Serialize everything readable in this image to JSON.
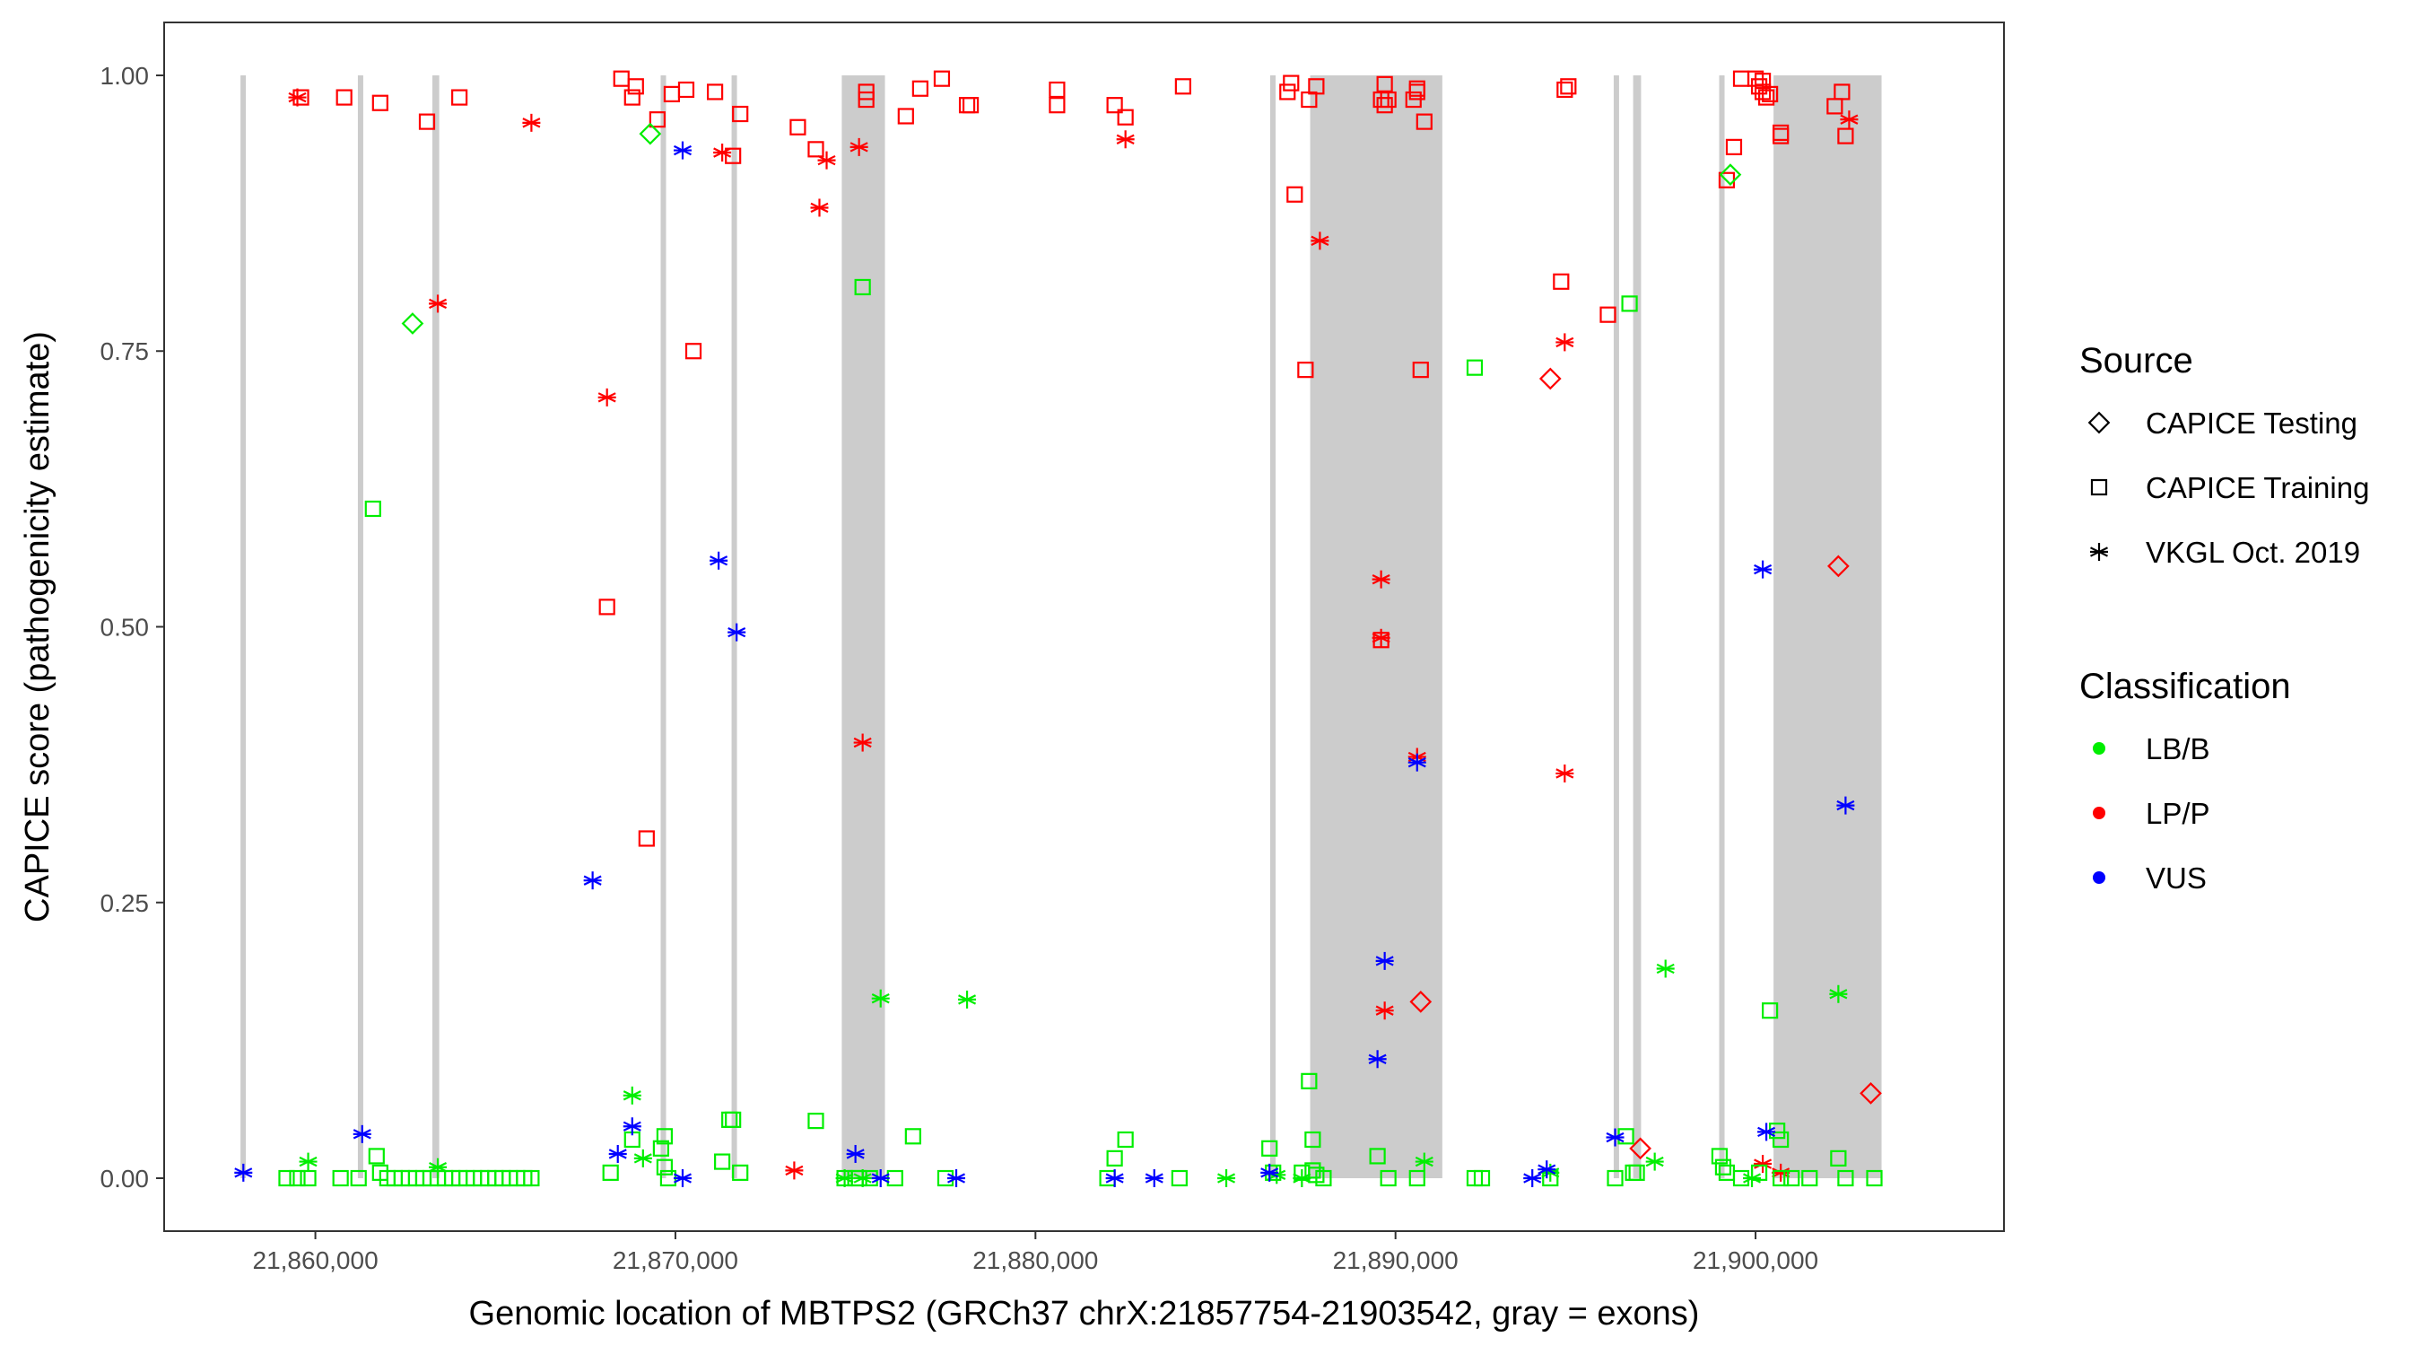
{
  "chart_data": {
    "type": "scatter",
    "title": "",
    "xlabel": "Genomic location of MBTPS2 (GRCh37 chrX:21857754-21903542, gray = exons)",
    "ylabel": "CAPICE score (pathogenicity estimate)",
    "xlim": [
      21855800,
      21906900
    ],
    "ylim": [
      -0.048,
      1.048
    ],
    "x_ticks": [
      21860000,
      21870000,
      21880000,
      21890000,
      21900000
    ],
    "x_tick_labels": [
      "21,860,000",
      "21,870,000",
      "21,880,000",
      "21,890,000",
      "21,900,000"
    ],
    "y_ticks": [
      0,
      0.25,
      0.5,
      0.75,
      1
    ],
    "y_tick_labels": [
      "0.00",
      "0.25",
      "0.50",
      "0.75",
      "1.00"
    ],
    "exons": [
      [
        21857920,
        21858010
      ],
      [
        21861180,
        21861270
      ],
      [
        21863250,
        21863440
      ],
      [
        21869590,
        21869680
      ],
      [
        21871560,
        21871650
      ],
      [
        21874620,
        21875820
      ],
      [
        21886520,
        21886620
      ],
      [
        21887630,
        21891300
      ],
      [
        21896060,
        21896160
      ],
      [
        21896600,
        21896820
      ],
      [
        21898990,
        21899100
      ],
      [
        21900500,
        21903500
      ]
    ],
    "legend": {
      "source_title": "Source",
      "source_items": [
        {
          "label": "CAPICE Testing",
          "shape": "diamond"
        },
        {
          "label": "CAPICE Training",
          "shape": "square"
        },
        {
          "label": "VKGL Oct. 2019",
          "shape": "asterisk"
        }
      ],
      "class_title": "Classification",
      "class_items": [
        {
          "label": "LB/B",
          "color": "#00ee00"
        },
        {
          "label": "LP/P",
          "color": "#ff0000"
        },
        {
          "label": "VUS",
          "color": "#0000ff"
        }
      ]
    },
    "series": [
      {
        "name": "LP/P - CAPICE Training",
        "source": "CAPICE Training",
        "class": "LP/P",
        "color": "#ff0000",
        "shape": "square",
        "x": [
          21859600,
          21860800,
          21861800,
          21863100,
          21864000,
          21868500,
          21868800,
          21868900,
          21869500,
          21869900,
          21870300,
          21871100,
          21871600,
          21871800,
          21870500,
          21868100,
          21869200,
          21873400,
          21873900,
          21875300,
          21875300,
          21876400,
          21876800,
          21877400,
          21878100,
          21878200,
          21880600,
          21880600,
          21882200,
          21882500,
          21884100,
          21887000,
          21887100,
          21887200,
          21887500,
          21887600,
          21887800,
          21889600,
          21889700,
          21889700,
          21889800,
          21890500,
          21890600,
          21890600,
          21890800,
          21890700,
          21894600,
          21894700,
          21894800,
          21895900,
          21899200,
          21899400,
          21899600,
          21900000,
          21900100,
          21900200,
          21900200,
          21900300,
          21900400,
          21900700,
          21900700,
          21902200,
          21902400,
          21902500,
          21889600
        ],
        "y": [
          0.98,
          0.98,
          0.975,
          0.958,
          0.98,
          0.997,
          0.98,
          0.99,
          0.96,
          0.983,
          0.987,
          0.985,
          0.927,
          0.965,
          0.75,
          0.518,
          0.308,
          0.953,
          0.933,
          0.985,
          0.978,
          0.963,
          0.988,
          0.997,
          0.973,
          0.973,
          0.987,
          0.973,
          0.973,
          0.962,
          0.99,
          0.985,
          0.993,
          0.892,
          0.733,
          0.978,
          0.99,
          0.978,
          0.992,
          0.973,
          0.978,
          0.978,
          0.985,
          0.988,
          0.958,
          0.733,
          0.813,
          0.987,
          0.99,
          0.783,
          0.905,
          0.935,
          0.997,
          0.997,
          0.99,
          0.985,
          0.995,
          0.98,
          0.983,
          0.948,
          0.945,
          0.972,
          0.985,
          0.945,
          0.488
        ]
      },
      {
        "name": "LP/P - CAPICE Testing",
        "source": "CAPICE Testing",
        "class": "LP/P",
        "color": "#ff0000",
        "shape": "diamond",
        "x": [
          21890700,
          21894300,
          21896800,
          21902300,
          21903200
        ],
        "y": [
          0.16,
          0.725,
          0.027,
          0.555,
          0.077
        ]
      },
      {
        "name": "LP/P - VKGL Oct. 2019",
        "source": "VKGL Oct. 2019",
        "class": "LP/P",
        "color": "#ff0000",
        "shape": "asterisk",
        "x": [
          21859500,
          21863400,
          21866000,
          21868100,
          21871300,
          21873300,
          21874000,
          21874200,
          21875100,
          21875200,
          21882500,
          21887900,
          21889600,
          21889600,
          21889700,
          21890600,
          21894700,
          21894700,
          21900700,
          21902600,
          21900200
        ],
        "y": [
          0.98,
          0.793,
          0.957,
          0.708,
          0.93,
          0.007,
          0.88,
          0.923,
          0.935,
          0.395,
          0.942,
          0.85,
          0.543,
          0.49,
          0.152,
          0.382,
          0.758,
          0.367,
          0.005,
          0.96,
          0.013
        ]
      },
      {
        "name": "LB/B - CAPICE Training",
        "source": "CAPICE Training",
        "class": "LB/B",
        "color": "#00ee00",
        "shape": "square",
        "x": [
          21859200,
          21859500,
          21859800,
          21860700,
          21861200,
          21861700,
          21861800,
          21862000,
          21862200,
          21862400,
          21862600,
          21862800,
          21863000,
          21863200,
          21863400,
          21863600,
          21863800,
          21864000,
          21864200,
          21864400,
          21864600,
          21864800,
          21865000,
          21865200,
          21865400,
          21865600,
          21865800,
          21866000,
          21861600,
          21868200,
          21868800,
          21869600,
          21869700,
          21869700,
          21869800,
          21871300,
          21871500,
          21871600,
          21871800,
          21873900,
          21874700,
          21875000,
          21875100,
          21875400,
          21876100,
          21876600,
          21877500,
          21882000,
          21882200,
          21882500,
          21884000,
          21886500,
          21886600,
          21887400,
          21887600,
          21887700,
          21887700,
          21887800,
          21888000,
          21889500,
          21889800,
          21890600,
          21892200,
          21892200,
          21892400,
          21894300,
          21896100,
          21896400,
          21896600,
          21896700,
          21899000,
          21899100,
          21899200,
          21899600,
          21900100,
          21900400,
          21900600,
          21900700,
          21900700,
          21901000,
          21901500,
          21902300,
          21902500,
          21903300,
          21875200,
          21896500
        ],
        "y": [
          0,
          0,
          0,
          0,
          0,
          0.02,
          0.005,
          0,
          0,
          0,
          0,
          0,
          0,
          0,
          0,
          0,
          0,
          0,
          0,
          0,
          0,
          0,
          0,
          0,
          0,
          0,
          0,
          0,
          0.607,
          0.005,
          0.035,
          0.027,
          0.038,
          0.01,
          0,
          0.015,
          0.053,
          0.053,
          0.005,
          0.052,
          0,
          0,
          0,
          0,
          0,
          0.038,
          0,
          0,
          0.018,
          0.035,
          0,
          0.027,
          0.005,
          0.005,
          0.088,
          0.035,
          0.007,
          0.003,
          0,
          0.02,
          0,
          0,
          0.735,
          0,
          0,
          0,
          0,
          0.038,
          0.005,
          0.005,
          0.02,
          0.01,
          0.005,
          0,
          0.005,
          0.152,
          0.043,
          0.035,
          0,
          0,
          0,
          0.018,
          0,
          0,
          0.808,
          0.793
        ]
      },
      {
        "name": "LB/B - CAPICE Testing",
        "source": "CAPICE Testing",
        "class": "LB/B",
        "color": "#00ee00",
        "shape": "diamond",
        "x": [
          21862700,
          21869300,
          21899300
        ],
        "y": [
          0.775,
          0.947,
          0.91
        ]
      },
      {
        "name": "LB/B - VKGL Oct. 2019",
        "source": "VKGL Oct. 2019",
        "class": "LB/B",
        "color": "#00ee00",
        "shape": "asterisk",
        "x": [
          21859800,
          21863400,
          21868800,
          21869100,
          21874700,
          21875200,
          21875700,
          21878100,
          21885300,
          21886700,
          21887400,
          21890800,
          21894300,
          21897200,
          21897500,
          21899900,
          21902300
        ],
        "y": [
          0.015,
          0.01,
          0.075,
          0.018,
          0,
          0,
          0.163,
          0.162,
          0,
          0.003,
          0,
          0.015,
          0.005,
          0.015,
          0.19,
          0,
          0.167
        ]
      },
      {
        "name": "VUS - VKGL Oct. 2019",
        "source": "VKGL Oct. 2019",
        "class": "VUS",
        "color": "#0000ff",
        "shape": "asterisk",
        "x": [
          21858000,
          21861300,
          21867700,
          21868400,
          21868800,
          21870200,
          21870200,
          21871200,
          21871700,
          21875000,
          21875700,
          21877800,
          21882200,
          21883300,
          21886500,
          21889500,
          21889700,
          21890600,
          21893800,
          21894200,
          21896100,
          21900200,
          21900300,
          21902500
        ],
        "y": [
          0.005,
          0.04,
          0.27,
          0.022,
          0.047,
          0,
          0.932,
          0.56,
          0.495,
          0.022,
          0,
          0,
          0,
          0,
          0.005,
          0.108,
          0.197,
          0.377,
          0,
          0.008,
          0.037,
          0.552,
          0.042,
          0.338
        ]
      }
    ]
  }
}
